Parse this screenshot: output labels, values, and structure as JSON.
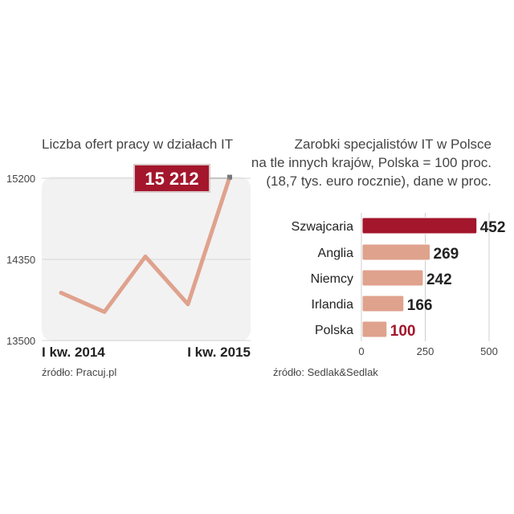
{
  "colors": {
    "accent": "#a3162c",
    "bar": "#dfa28d",
    "line": "#dfa28d",
    "plot_bg": "#f2f2f2"
  },
  "left": {
    "title": "Liczba ofert pracy w działach IT",
    "source": "źródło: Pracuj.pl",
    "callout": "15 212",
    "x_labels": [
      "I kw. 2014",
      "I kw. 2015"
    ]
  },
  "right": {
    "title_lines": [
      "Zarobki specjalistów IT w Polsce",
      "na tle innych krajów, Polska = 100 proc.",
      "(18,7 tys. euro rocznie), dane w proc."
    ],
    "source": "źródło: Sedlak&Sedlak"
  },
  "chart_data": [
    {
      "type": "line",
      "title": "Liczba ofert pracy w działach IT",
      "x": [
        "I kw. 2014",
        "",
        "",
        "",
        "I kw. 2015"
      ],
      "values": [
        14000,
        13800,
        14380,
        13880,
        15212
      ],
      "ylim": [
        13500,
        15200
      ],
      "yticks": [
        13500,
        14350,
        15200
      ],
      "grid": true,
      "annotation": {
        "index": 4,
        "text": "15 212"
      }
    },
    {
      "type": "bar",
      "orientation": "horizontal",
      "title": "Zarobki specjalistów IT w Polsce na tle innych krajów, Polska = 100 proc. (18,7 tys. euro rocznie), dane w proc.",
      "categories": [
        "Szwajcaria",
        "Anglia",
        "Niemcy",
        "Irlandia",
        "Polska"
      ],
      "values": [
        452,
        269,
        242,
        166,
        100
      ],
      "labels": [
        "452",
        "269",
        "242",
        "166",
        "100"
      ],
      "xlim": [
        0,
        500
      ],
      "xticks": [
        0,
        250,
        500
      ],
      "highlight": [
        "Szwajcaria"
      ],
      "highlight_label": [
        "Polska"
      ]
    }
  ]
}
